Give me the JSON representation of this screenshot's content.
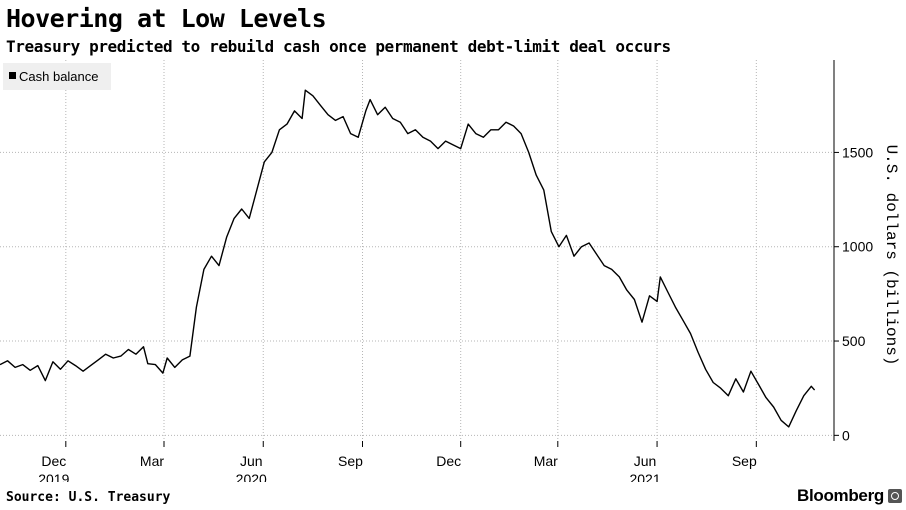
{
  "chart_data": {
    "type": "line",
    "title": "Hovering at Low Levels",
    "subtitle": "Treasury predicted to rebuild cash once permanent debt-limit deal occurs",
    "ylabel": "U.S. dollars (billions)",
    "xlabel": "",
    "ylim": [
      -30,
      1990
    ],
    "y_ticks": [
      0,
      500,
      1000,
      1500
    ],
    "y_tick_labels": [
      "0",
      "500",
      "1000",
      "1500"
    ],
    "x_axis": "date",
    "x_range": [
      "2019-10-01",
      "2021-11-12"
    ],
    "x_ticks": [
      {
        "date": "2019-12-01",
        "label": "Dec",
        "year": "2019"
      },
      {
        "date": "2020-03-01",
        "label": "Mar",
        "year": ""
      },
      {
        "date": "2020-06-01",
        "label": "Jun",
        "year": "2020"
      },
      {
        "date": "2020-09-01",
        "label": "Sep",
        "year": ""
      },
      {
        "date": "2020-12-01",
        "label": "Dec",
        "year": ""
      },
      {
        "date": "2021-03-01",
        "label": "Mar",
        "year": ""
      },
      {
        "date": "2021-06-01",
        "label": "Jun",
        "year": "2021"
      },
      {
        "date": "2021-09-01",
        "label": "Sep",
        "year": ""
      }
    ],
    "grid": true,
    "legend_placement": "top-left",
    "series": [
      {
        "name": "Cash balance",
        "color": "#000000",
        "points": [
          [
            "2019-10-01",
            375
          ],
          [
            "2019-10-08",
            395
          ],
          [
            "2019-10-15",
            360
          ],
          [
            "2019-10-22",
            375
          ],
          [
            "2019-10-29",
            345
          ],
          [
            "2019-11-05",
            370
          ],
          [
            "2019-11-12",
            290
          ],
          [
            "2019-11-19",
            390
          ],
          [
            "2019-11-26",
            350
          ],
          [
            "2019-12-03",
            395
          ],
          [
            "2019-12-10",
            370
          ],
          [
            "2019-12-17",
            340
          ],
          [
            "2019-12-24",
            370
          ],
          [
            "2019-12-31",
            400
          ],
          [
            "2020-01-07",
            430
          ],
          [
            "2020-01-14",
            410
          ],
          [
            "2020-01-21",
            420
          ],
          [
            "2020-01-28",
            455
          ],
          [
            "2020-02-04",
            430
          ],
          [
            "2020-02-11",
            470
          ],
          [
            "2020-02-15",
            380
          ],
          [
            "2020-02-22",
            375
          ],
          [
            "2020-02-29",
            330
          ],
          [
            "2020-03-04",
            410
          ],
          [
            "2020-03-11",
            360
          ],
          [
            "2020-03-18",
            400
          ],
          [
            "2020-03-25",
            420
          ],
          [
            "2020-03-31",
            680
          ],
          [
            "2020-04-07",
            880
          ],
          [
            "2020-04-14",
            950
          ],
          [
            "2020-04-21",
            900
          ],
          [
            "2020-04-28",
            1050
          ],
          [
            "2020-05-05",
            1150
          ],
          [
            "2020-05-12",
            1200
          ],
          [
            "2020-05-19",
            1150
          ],
          [
            "2020-05-26",
            1300
          ],
          [
            "2020-06-02",
            1450
          ],
          [
            "2020-06-09",
            1500
          ],
          [
            "2020-06-16",
            1620
          ],
          [
            "2020-06-23",
            1650
          ],
          [
            "2020-06-30",
            1720
          ],
          [
            "2020-07-07",
            1680
          ],
          [
            "2020-07-10",
            1830
          ],
          [
            "2020-07-17",
            1800
          ],
          [
            "2020-07-24",
            1750
          ],
          [
            "2020-07-31",
            1700
          ],
          [
            "2020-08-07",
            1670
          ],
          [
            "2020-08-14",
            1690
          ],
          [
            "2020-08-21",
            1600
          ],
          [
            "2020-08-28",
            1580
          ],
          [
            "2020-09-04",
            1720
          ],
          [
            "2020-09-08",
            1780
          ],
          [
            "2020-09-15",
            1700
          ],
          [
            "2020-09-22",
            1740
          ],
          [
            "2020-09-29",
            1680
          ],
          [
            "2020-10-06",
            1660
          ],
          [
            "2020-10-13",
            1600
          ],
          [
            "2020-10-20",
            1620
          ],
          [
            "2020-10-27",
            1580
          ],
          [
            "2020-11-03",
            1560
          ],
          [
            "2020-11-10",
            1520
          ],
          [
            "2020-11-17",
            1560
          ],
          [
            "2020-11-24",
            1540
          ],
          [
            "2020-12-01",
            1520
          ],
          [
            "2020-12-08",
            1650
          ],
          [
            "2020-12-15",
            1600
          ],
          [
            "2020-12-22",
            1580
          ],
          [
            "2020-12-29",
            1620
          ],
          [
            "2021-01-05",
            1620
          ],
          [
            "2021-01-12",
            1660
          ],
          [
            "2021-01-19",
            1640
          ],
          [
            "2021-01-26",
            1600
          ],
          [
            "2021-02-02",
            1500
          ],
          [
            "2021-02-09",
            1380
          ],
          [
            "2021-02-16",
            1300
          ],
          [
            "2021-02-23",
            1080
          ],
          [
            "2021-03-02",
            1000
          ],
          [
            "2021-03-09",
            1060
          ],
          [
            "2021-03-16",
            950
          ],
          [
            "2021-03-23",
            1000
          ],
          [
            "2021-03-30",
            1020
          ],
          [
            "2021-04-06",
            960
          ],
          [
            "2021-04-13",
            900
          ],
          [
            "2021-04-20",
            880
          ],
          [
            "2021-04-27",
            840
          ],
          [
            "2021-05-04",
            770
          ],
          [
            "2021-05-11",
            720
          ],
          [
            "2021-05-18",
            600
          ],
          [
            "2021-05-25",
            740
          ],
          [
            "2021-06-01",
            710
          ],
          [
            "2021-06-04",
            840
          ],
          [
            "2021-06-11",
            760
          ],
          [
            "2021-06-18",
            680
          ],
          [
            "2021-06-25",
            610
          ],
          [
            "2021-07-02",
            540
          ],
          [
            "2021-07-09",
            440
          ],
          [
            "2021-07-16",
            350
          ],
          [
            "2021-07-23",
            280
          ],
          [
            "2021-07-30",
            250
          ],
          [
            "2021-08-06",
            210
          ],
          [
            "2021-08-13",
            300
          ],
          [
            "2021-08-20",
            230
          ],
          [
            "2021-08-27",
            340
          ],
          [
            "2021-09-03",
            270
          ],
          [
            "2021-09-10",
            200
          ],
          [
            "2021-09-17",
            150
          ],
          [
            "2021-09-24",
            80
          ],
          [
            "2021-10-01",
            45
          ],
          [
            "2021-10-08",
            130
          ],
          [
            "2021-10-15",
            210
          ],
          [
            "2021-10-22",
            260
          ],
          [
            "2021-10-25",
            240
          ]
        ]
      }
    ],
    "source": "Source: U.S. Treasury",
    "brand": "Bloomberg"
  }
}
